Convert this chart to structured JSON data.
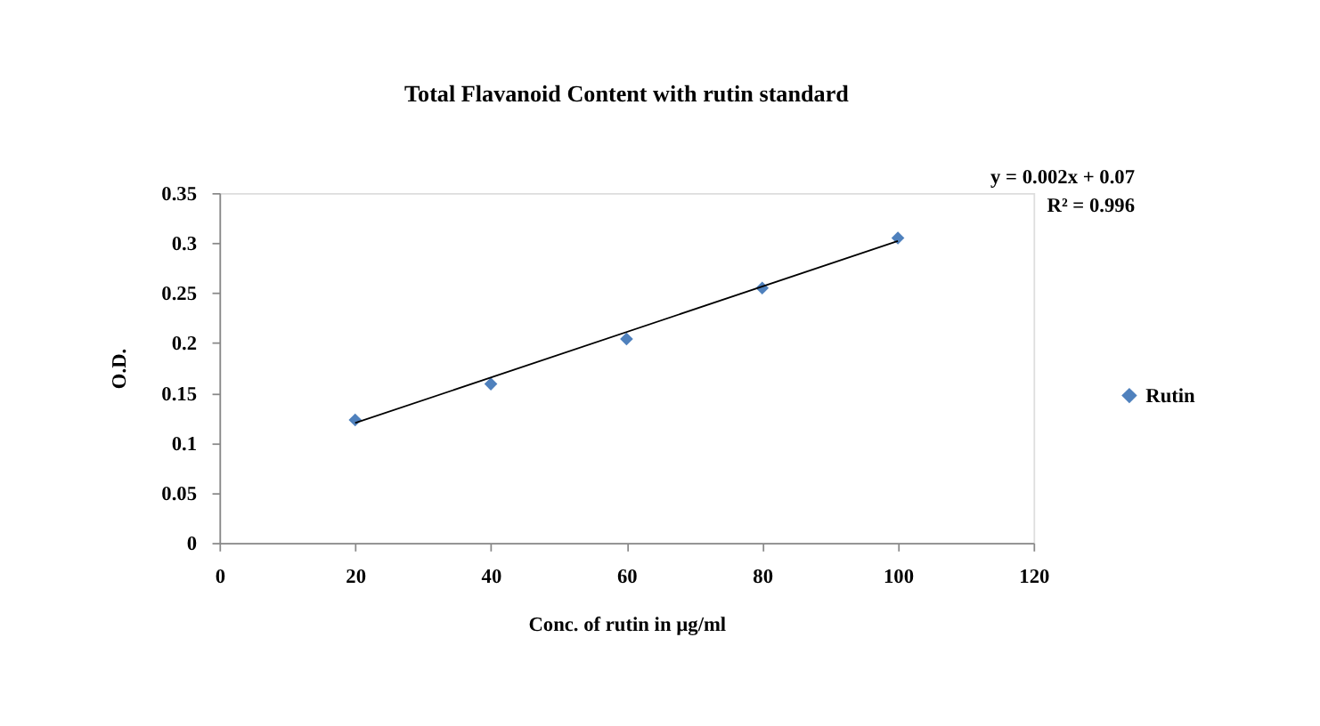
{
  "chart_data": {
    "type": "scatter",
    "title": "Total Flavanoid Content with rutin standard",
    "xlabel": "Conc. of rutin in µg/ml",
    "ylabel": "O.D.",
    "x": [
      20,
      40,
      60,
      80,
      100
    ],
    "series": [
      {
        "name": "Rutin",
        "color": "#4f81bd",
        "type": "scatter",
        "values": [
          0.123,
          0.159,
          0.204,
          0.255,
          0.305
        ]
      },
      {
        "color": "#000000",
        "type": "line",
        "marker": "none",
        "line_style": "solid",
        "x": [
          20,
          100
        ],
        "values": [
          0.12,
          0.302
        ]
      }
    ],
    "marker": "diamond",
    "xlim": [
      0,
      120
    ],
    "xticks": [
      0,
      20,
      40,
      60,
      80,
      100,
      120
    ],
    "ylim": [
      0,
      0.35
    ],
    "yticks": [
      0,
      0.05,
      0.1,
      0.15,
      0.2,
      0.25,
      0.3,
      0.35
    ],
    "annotations": [
      "y = 0.002x + 0.07",
      "R² = 0.996"
    ],
    "legend": "right",
    "grid": false
  }
}
